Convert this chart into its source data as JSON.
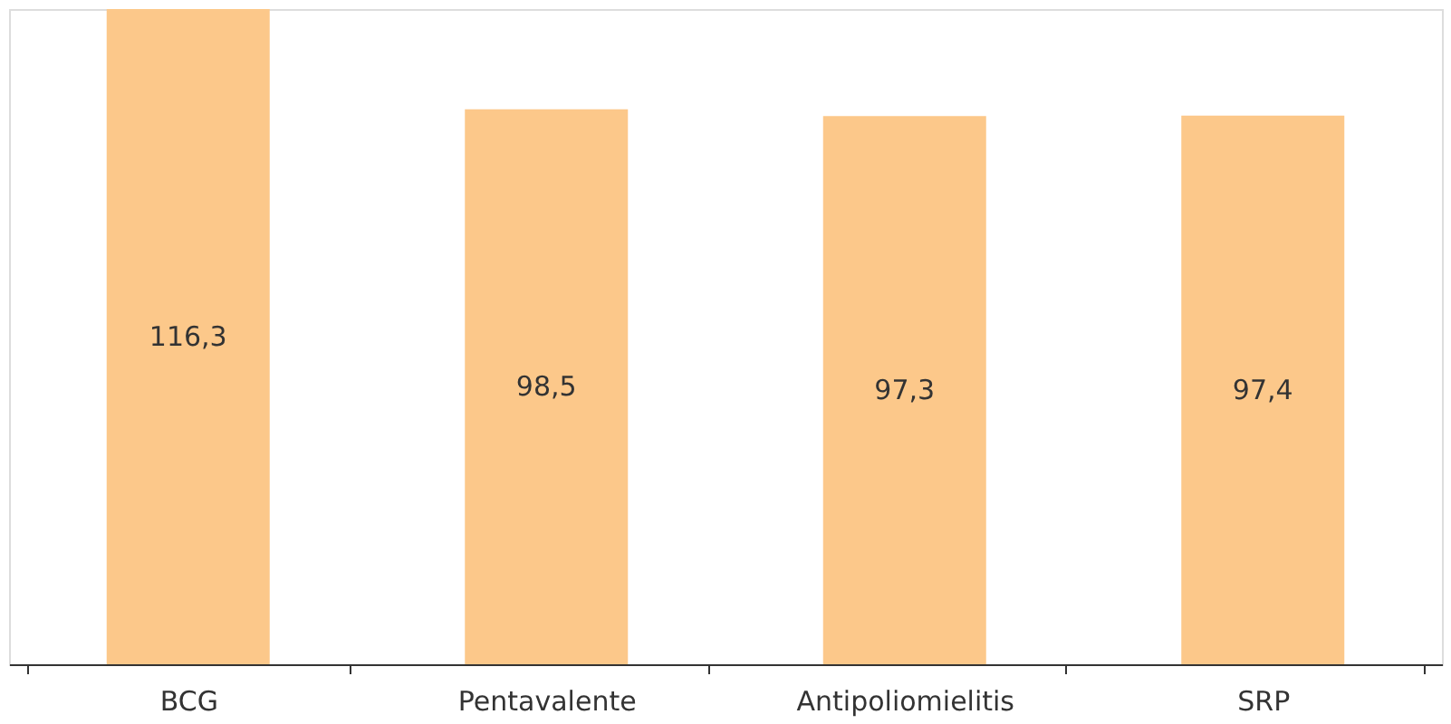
{
  "chart_data": {
    "type": "bar",
    "categories": [
      "BCG",
      "Pentavalente",
      "Antipoliomielitis",
      "SRP"
    ],
    "values": [
      116.3,
      98.5,
      97.3,
      97.4
    ],
    "value_labels": [
      "116,3",
      "98,5",
      "97,3",
      "97,4"
    ],
    "color": "#fcc88a",
    "grid": false
  }
}
